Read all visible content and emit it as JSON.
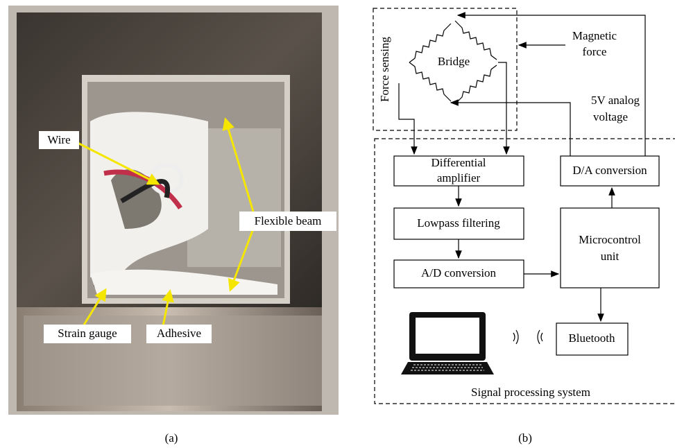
{
  "panel_a": {
    "labels": {
      "wire": "Wire",
      "flexible_beam": "Flexible beam",
      "strain_gauge": "Strain gauge",
      "adhesive": "Adhesive"
    },
    "caption": "(a)"
  },
  "panel_b": {
    "force_sensing": "Force sensing",
    "bridge": "Bridge",
    "magnetic_force": [
      "Magnetic",
      "force"
    ],
    "analog_voltage": [
      "5V analog",
      "voltage"
    ],
    "blocks": {
      "differential_amplifier": [
        "Differential",
        "amplifier"
      ],
      "lowpass_filtering": "Lowpass filtering",
      "ad_conversion": "A/D conversion",
      "da_conversion": "D/A conversion",
      "microcontrol_unit": [
        "Microcontrol",
        "unit"
      ],
      "bluetooth": "Bluetooth"
    },
    "signal_processing_system": "Signal processing system",
    "caption": "(b)"
  }
}
